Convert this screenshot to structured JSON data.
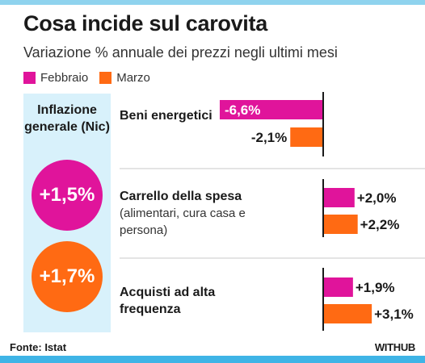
{
  "title": "Cosa incide sul carovita",
  "subtitle": "Variazione % annuale dei prezzi negli ultimi mesi",
  "legend": [
    {
      "label": "Febbraio",
      "color": "#e0149b"
    },
    {
      "label": "Marzo",
      "color": "#ff6a13"
    }
  ],
  "inflation": {
    "title": "Inflazione generale (Nic)",
    "febbraio": "+1,5%",
    "marzo": "+1,7%"
  },
  "chart_data": {
    "type": "bar",
    "orientation": "horizontal",
    "categories": [
      {
        "title": "Beni energetici",
        "subtitle": ""
      },
      {
        "title": "Carrello della spesa",
        "subtitle": "(alimentari, cura casa e persona)"
      },
      {
        "title": "Acquisti ad alta frequenza",
        "subtitle": ""
      }
    ],
    "series": [
      {
        "name": "Febbraio",
        "color": "#e0149b",
        "values": [
          -6.6,
          2.0,
          1.9
        ],
        "labels": [
          "-6,6%",
          "+2,0%",
          "+1,9%"
        ]
      },
      {
        "name": "Marzo",
        "color": "#ff6a13",
        "values": [
          -2.1,
          2.2,
          3.1
        ],
        "labels": [
          "-2,1%",
          "+2,2%",
          "+3,1%"
        ]
      }
    ]
  },
  "footer": {
    "source": "Fonte: Istat",
    "brand": "WITHUB"
  }
}
